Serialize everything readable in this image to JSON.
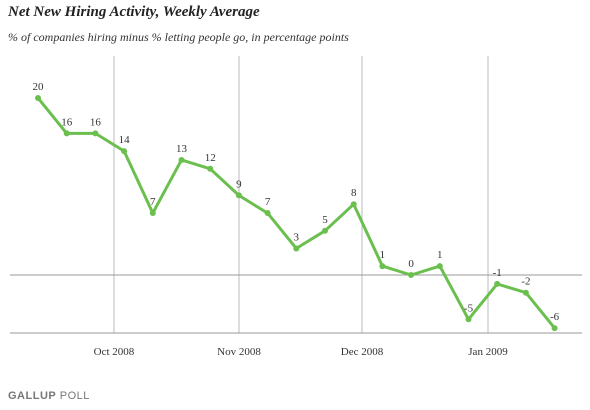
{
  "title": "Net New Hiring Activity, Weekly Average",
  "subtitle": "% of companies hiring minus % letting people go, in percentage points",
  "footer": {
    "brand": "GALLUP",
    "suffix": " POLL"
  },
  "colors": {
    "line": "#6bbf4e",
    "grid": "#bbbbbb",
    "zero_line": "#999999"
  },
  "chart_data": {
    "type": "line",
    "title": "Net New Hiring Activity, Weekly Average",
    "subtitle": "% of companies hiring minus % letting people go, in percentage points",
    "xlabel": "",
    "ylabel": "",
    "x_tick_labels": [
      "Oct 2008",
      "Nov 2008",
      "Dec 2008",
      "Jan 2009"
    ],
    "series": [
      {
        "values": [
          20,
          16,
          16,
          14,
          7,
          13,
          12,
          9,
          7,
          3,
          5,
          8,
          1,
          0,
          1,
          -5,
          -1,
          -2,
          -6
        ]
      }
    ],
    "grid": true,
    "legend": "none"
  }
}
